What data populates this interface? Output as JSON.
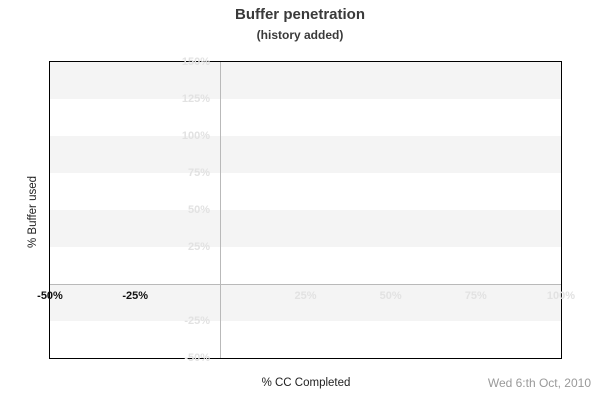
{
  "title": "Buffer penetration",
  "subtitle": "(history added)",
  "y_axis": {
    "label": "% Buffer used",
    "ticks": [
      {
        "label": "150%"
      },
      {
        "label": "125%"
      },
      {
        "label": "100%"
      },
      {
        "label": "75%"
      },
      {
        "label": "50%"
      },
      {
        "label": "25%"
      },
      {
        "label": "-25%"
      },
      {
        "label": "-50%"
      }
    ]
  },
  "x_axis": {
    "label": "% CC Completed",
    "ticks": [
      {
        "label": "-50%",
        "emphasized": true
      },
      {
        "label": "-25%",
        "emphasized": true
      },
      {
        "label": "25%",
        "emphasized": false
      },
      {
        "label": "50%",
        "emphasized": false
      },
      {
        "label": "75%",
        "emphasized": false
      },
      {
        "label": "100%",
        "emphasized": false
      }
    ]
  },
  "footer": {
    "date": "Wed 6:th Oct, 2010"
  },
  "colors": {
    "background": "#ffffff",
    "plot_border": "#000000",
    "band_gray": "#f4f4f4",
    "band_white": "#ffffff",
    "zero_lines": "#b9b9b9",
    "tick_light": "#e2e2e2",
    "tick_dark": "#111111",
    "title_text": "#3a3a3a",
    "axis_title_text": "#222222",
    "date_text": "#999999"
  },
  "chart_data": {
    "type": "line",
    "title": "Buffer penetration",
    "subtitle": "(history added)",
    "xlabel": "% CC Completed",
    "ylabel": "% Buffer used",
    "xlim": [
      -50,
      100
    ],
    "ylim": [
      -50,
      150
    ],
    "x_ticks": [
      -50,
      -25,
      25,
      50,
      75,
      100
    ],
    "y_ticks": [
      150,
      125,
      100,
      75,
      50,
      25,
      -25,
      -50
    ],
    "zero_axis_lines": {
      "vertical_at_x": 0,
      "horizontal_at_y": 0
    },
    "background_bands": "alternating gray/white horizontal bands every 25%, gray starting at 150%-125%",
    "legend": false,
    "series": [],
    "annotations": [
      "Wed 6:th Oct, 2010"
    ]
  }
}
